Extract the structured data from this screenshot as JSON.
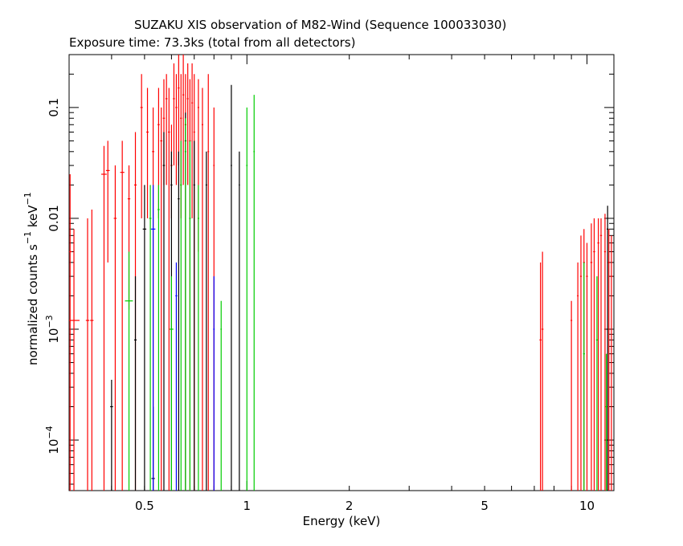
{
  "chart_data": {
    "type": "scatter",
    "title": "SUZAKU XIS observation of M82-Wind (Sequence 100033030)",
    "subtitle": "Exposure time: 73.3ks (total from all detectors)",
    "xlabel": "Energy (keV)",
    "ylabel": {
      "text1": "normalized counts s",
      "sup1": "−1",
      "text2": " keV",
      "sup2": "−1"
    },
    "x_scale": "log",
    "y_scale": "log",
    "xlim": [
      0.3,
      12.0
    ],
    "ylim": [
      3.5e-05,
      0.3
    ],
    "x_ticks": [
      {
        "value": 0.5,
        "label": "0.5"
      },
      {
        "value": 1,
        "label": "1"
      },
      {
        "value": 2,
        "label": "2"
      },
      {
        "value": 5,
        "label": "5"
      },
      {
        "value": 10,
        "label": "10"
      }
    ],
    "y_ticks": [
      {
        "value": 0.0001,
        "base": "10",
        "exp": "−4",
        "label": ""
      },
      {
        "value": 0.001,
        "base": "10",
        "exp": "−3",
        "label": ""
      },
      {
        "value": 0.01,
        "base": "",
        "exp": "",
        "label": "0.01"
      },
      {
        "value": 0.1,
        "base": "",
        "exp": "",
        "label": "0.1"
      }
    ],
    "colors": {
      "XIS0": "#000000",
      "XIS1": "#ff0000",
      "XIS2": "#00cc00",
      "XIS3": "#0000ff"
    },
    "series": [
      {
        "color": "#ff0000",
        "points": [
          {
            "x": 0.302,
            "y": 0.005,
            "xerr": 0.004,
            "ylo": 3.5e-05,
            "yhi": 0.025
          },
          {
            "x": 0.31,
            "y": 0.0012,
            "xerr": 0.012,
            "ylo": 3.5e-05,
            "yhi": 0.008
          },
          {
            "x": 0.34,
            "y": 0.0012,
            "xerr": 0.004,
            "ylo": 3.5e-05,
            "yhi": 0.01
          },
          {
            "x": 0.35,
            "y": 0.0012,
            "xerr": 0.004,
            "ylo": 3.5e-05,
            "yhi": 0.012
          },
          {
            "x": 0.38,
            "y": 0.025,
            "xerr": 0.007,
            "ylo": 3.5e-05,
            "yhi": 0.045
          },
          {
            "x": 0.39,
            "y": 0.027,
            "xerr": 0.005,
            "ylo": 0.004,
            "yhi": 0.05
          },
          {
            "x": 0.41,
            "y": 0.01,
            "xerr": 0.004,
            "ylo": 3.5e-05,
            "yhi": 0.03
          },
          {
            "x": 0.43,
            "y": 0.026,
            "xerr": 0.006,
            "ylo": 3.5e-05,
            "yhi": 0.05
          },
          {
            "x": 0.45,
            "y": 0.015,
            "xerr": 0.004,
            "ylo": 0.0015,
            "yhi": 0.03
          },
          {
            "x": 0.47,
            "y": 0.02,
            "xerr": 0.004,
            "ylo": 3.5e-05,
            "yhi": 0.06
          },
          {
            "x": 0.49,
            "y": 0.1,
            "xerr": 0.004,
            "ylo": 0.01,
            "yhi": 0.2
          },
          {
            "x": 0.51,
            "y": 0.06,
            "xerr": 0.004,
            "ylo": 0.01,
            "yhi": 0.15
          },
          {
            "x": 0.53,
            "y": 0.04,
            "xerr": 0.004,
            "ylo": 3.5e-05,
            "yhi": 0.1
          },
          {
            "x": 0.55,
            "y": 0.07,
            "xerr": 0.004,
            "ylo": 0.01,
            "yhi": 0.15
          },
          {
            "x": 0.56,
            "y": 0.05,
            "xerr": 0.004,
            "ylo": 3.5e-05,
            "yhi": 0.1
          },
          {
            "x": 0.57,
            "y": 0.08,
            "xerr": 0.004,
            "ylo": 0.02,
            "yhi": 0.18
          },
          {
            "x": 0.58,
            "y": 0.12,
            "xerr": 0.004,
            "ylo": 0.02,
            "yhi": 0.2
          },
          {
            "x": 0.59,
            "y": 0.06,
            "xerr": 0.004,
            "ylo": 3.5e-05,
            "yhi": 0.15
          },
          {
            "x": 0.6,
            "y": 0.03,
            "xerr": 0.004,
            "ylo": 0.01,
            "yhi": 0.07
          },
          {
            "x": 0.61,
            "y": 0.12,
            "xerr": 0.004,
            "ylo": 0.03,
            "yhi": 0.25
          },
          {
            "x": 0.62,
            "y": 0.1,
            "xerr": 0.004,
            "ylo": 0.02,
            "yhi": 0.2
          },
          {
            "x": 0.63,
            "y": 0.15,
            "xerr": 0.004,
            "ylo": 0.03,
            "yhi": 0.3
          },
          {
            "x": 0.64,
            "y": 0.08,
            "xerr": 0.004,
            "ylo": 0.01,
            "yhi": 0.2
          },
          {
            "x": 0.65,
            "y": 0.13,
            "xerr": 0.004,
            "ylo": 0.02,
            "yhi": 0.3
          },
          {
            "x": 0.66,
            "y": 0.07,
            "xerr": 0.004,
            "ylo": 3.5e-05,
            "yhi": 0.2
          },
          {
            "x": 0.67,
            "y": 0.12,
            "xerr": 0.004,
            "ylo": 0.02,
            "yhi": 0.25
          },
          {
            "x": 0.68,
            "y": 0.05,
            "xerr": 0.004,
            "ylo": 3.5e-05,
            "yhi": 0.18
          },
          {
            "x": 0.69,
            "y": 0.11,
            "xerr": 0.004,
            "ylo": 0.01,
            "yhi": 0.25
          },
          {
            "x": 0.7,
            "y": 0.06,
            "xerr": 0.004,
            "ylo": 3.5e-05,
            "yhi": 0.2
          },
          {
            "x": 0.72,
            "y": 0.1,
            "xerr": 0.004,
            "ylo": 0.005,
            "yhi": 0.18
          },
          {
            "x": 0.74,
            "y": 0.07,
            "xerr": 0.004,
            "ylo": 3.5e-05,
            "yhi": 0.15
          },
          {
            "x": 0.77,
            "y": 0.04,
            "xerr": 0.004,
            "ylo": 3.5e-05,
            "yhi": 0.2
          },
          {
            "x": 0.8,
            "y": 0.03,
            "xerr": 0.004,
            "ylo": 3.5e-05,
            "yhi": 0.1
          },
          {
            "x": 7.3,
            "y": 0.0008,
            "xerr": 0.05,
            "ylo": 3.5e-05,
            "yhi": 0.004
          },
          {
            "x": 7.4,
            "y": 0.001,
            "xerr": 0.05,
            "ylo": 3.5e-05,
            "yhi": 0.005
          },
          {
            "x": 9.0,
            "y": 0.0012,
            "xerr": 0.05,
            "ylo": 3.5e-05,
            "yhi": 0.0018
          },
          {
            "x": 9.4,
            "y": 0.002,
            "xerr": 0.05,
            "ylo": 3.5e-05,
            "yhi": 0.004
          },
          {
            "x": 9.6,
            "y": 0.003,
            "xerr": 0.06,
            "ylo": 3.5e-05,
            "yhi": 0.007
          },
          {
            "x": 9.8,
            "y": 0.004,
            "xerr": 0.06,
            "ylo": 3.5e-05,
            "yhi": 0.008
          },
          {
            "x": 10.0,
            "y": 0.003,
            "xerr": 0.06,
            "ylo": 3.5e-05,
            "yhi": 0.006
          },
          {
            "x": 10.3,
            "y": 0.004,
            "xerr": 0.07,
            "ylo": 3.5e-05,
            "yhi": 0.009
          },
          {
            "x": 10.5,
            "y": 0.005,
            "xerr": 0.07,
            "ylo": 3.5e-05,
            "yhi": 0.01
          },
          {
            "x": 10.8,
            "y": 0.006,
            "xerr": 0.07,
            "ylo": 3.5e-05,
            "yhi": 0.01
          },
          {
            "x": 11.0,
            "y": 0.007,
            "xerr": 0.07,
            "ylo": 3.5e-05,
            "yhi": 0.01
          },
          {
            "x": 11.3,
            "y": 0.005,
            "xerr": 0.07,
            "ylo": 3.5e-05,
            "yhi": 0.011
          },
          {
            "x": 11.6,
            "y": 0.004,
            "xerr": 0.07,
            "ylo": 3.5e-05,
            "yhi": 0.008
          },
          {
            "x": 11.8,
            "y": 0.003,
            "xerr": 0.07,
            "ylo": 3.5e-05,
            "yhi": 0.007
          }
        ]
      },
      {
        "color": "#000000",
        "points": [
          {
            "x": 0.4,
            "y": 0.0002,
            "xerr": 0.004,
            "ylo": 3.5e-05,
            "yhi": 0.00035
          },
          {
            "x": 0.47,
            "y": 0.0008,
            "xerr": 0.004,
            "ylo": 3.5e-05,
            "yhi": 0.003
          },
          {
            "x": 0.5,
            "y": 0.008,
            "xerr": 0.006,
            "ylo": 3.5e-05,
            "yhi": 0.02
          },
          {
            "x": 0.53,
            "y": 4.5e-05,
            "xerr": 0.006,
            "ylo": 3.5e-05,
            "yhi": 0.0002
          },
          {
            "x": 0.57,
            "y": 0.03,
            "xerr": 0.004,
            "ylo": 3.5e-05,
            "yhi": 0.06
          },
          {
            "x": 0.6,
            "y": 0.02,
            "xerr": 0.004,
            "ylo": 3.5e-05,
            "yhi": 0.04
          },
          {
            "x": 0.63,
            "y": 0.015,
            "xerr": 0.004,
            "ylo": 3.5e-05,
            "yhi": 0.04
          },
          {
            "x": 0.66,
            "y": 0.05,
            "xerr": 0.004,
            "ylo": 3.5e-05,
            "yhi": 0.09
          },
          {
            "x": 0.7,
            "y": 0.02,
            "xerr": 0.004,
            "ylo": 3.5e-05,
            "yhi": 0.05
          },
          {
            "x": 0.76,
            "y": 0.02,
            "xerr": 0.004,
            "ylo": 3.5e-05,
            "yhi": 0.04
          },
          {
            "x": 0.9,
            "y": 0.03,
            "xerr": 0.004,
            "ylo": 3.5e-05,
            "yhi": 0.16
          },
          {
            "x": 0.95,
            "y": 0.02,
            "xerr": 0.004,
            "ylo": 3.5e-05,
            "yhi": 0.04
          },
          {
            "x": 11.5,
            "y": 0.008,
            "xerr": 0.07,
            "ylo": 3.5e-05,
            "yhi": 0.013
          }
        ]
      },
      {
        "color": "#00cc00",
        "points": [
          {
            "x": 0.45,
            "y": 0.0018,
            "xerr": 0.012,
            "ylo": 3.5e-05,
            "yhi": 0.005
          },
          {
            "x": 0.52,
            "y": 0.01,
            "xerr": 0.004,
            "ylo": 3.5e-05,
            "yhi": 0.02
          },
          {
            "x": 0.55,
            "y": 0.012,
            "xerr": 0.004,
            "ylo": 3.5e-05,
            "yhi": 0.02
          },
          {
            "x": 0.6,
            "y": 0.001,
            "xerr": 0.008,
            "ylo": 3.5e-05,
            "yhi": 0.003
          },
          {
            "x": 0.64,
            "y": 0.02,
            "xerr": 0.004,
            "ylo": 3.5e-05,
            "yhi": 0.05
          },
          {
            "x": 0.66,
            "y": 0.04,
            "xerr": 0.004,
            "ylo": 3.5e-05,
            "yhi": 0.08
          },
          {
            "x": 0.68,
            "y": 0.01,
            "xerr": 0.004,
            "ylo": 3.5e-05,
            "yhi": 0.05
          },
          {
            "x": 0.72,
            "y": 0.01,
            "xerr": 0.004,
            "ylo": 3.5e-05,
            "yhi": 0.02
          },
          {
            "x": 0.84,
            "y": 0.001,
            "xerr": 0.004,
            "ylo": 3.5e-05,
            "yhi": 0.0018
          },
          {
            "x": 1.0,
            "y": 0.03,
            "xerr": 0.005,
            "ylo": 3.5e-05,
            "yhi": 0.1
          },
          {
            "x": 1.05,
            "y": 0.04,
            "xerr": 0.005,
            "ylo": 3.5e-05,
            "yhi": 0.13
          },
          {
            "x": 9.8,
            "y": 0.0006,
            "xerr": 0.06,
            "ylo": 3.5e-05,
            "yhi": 0.004
          },
          {
            "x": 10.7,
            "y": 0.0008,
            "xerr": 0.07,
            "ylo": 3.5e-05,
            "yhi": 0.003
          },
          {
            "x": 11.4,
            "y": 0.0002,
            "xerr": 0.07,
            "ylo": 3.5e-05,
            "yhi": 0.0006
          }
        ]
      },
      {
        "color": "#0000ff",
        "points": [
          {
            "x": 0.53,
            "y": 0.008,
            "xerr": 0.008,
            "ylo": 3.5e-05,
            "yhi": 0.02
          },
          {
            "x": 0.62,
            "y": 0.002,
            "xerr": 0.004,
            "ylo": 3.5e-05,
            "yhi": 0.004
          },
          {
            "x": 0.8,
            "y": 0.001,
            "xerr": 0.004,
            "ylo": 3.5e-05,
            "yhi": 0.003
          }
        ]
      }
    ]
  }
}
